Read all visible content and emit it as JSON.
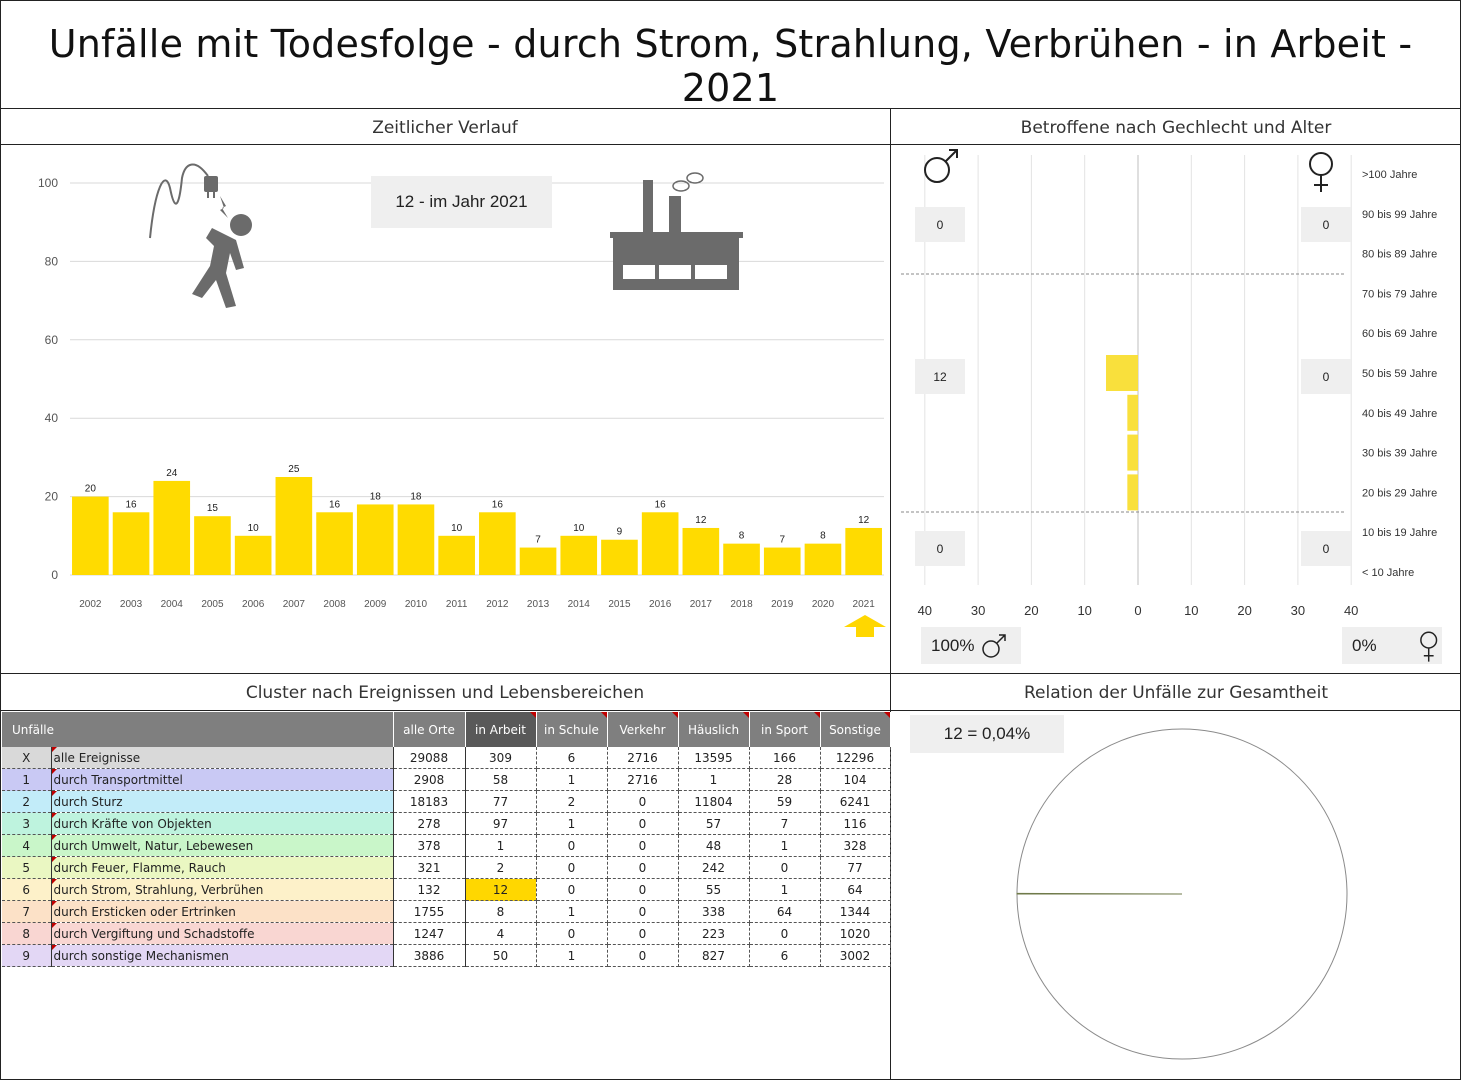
{
  "title": "Unfälle mit Todesfolge - durch Strom, Strahlung, Verbrühen - in Arbeit - 2021",
  "sections": {
    "timeline": "Zeitlicher Verlauf",
    "gender": "Betroffene nach Gechlecht und Alter",
    "cluster": "Cluster nach Ereignissen und Lebensbereichen",
    "relation": "Relation der Unfälle zur Gesamtheit"
  },
  "colors": {
    "bar": "#FFDB00",
    "pyramid_bar": "#F9E03C",
    "arrow": "#FFD700",
    "highlight": "#FFD700",
    "header": "#7F7F7F"
  },
  "timeline_callout": "12 - im Jahr 2021",
  "gender_callouts": {
    "male_top": "0",
    "female_top": "0",
    "male_mid": "12",
    "female_mid": "0",
    "male_bot": "0",
    "female_bot": "0",
    "male_pct": "100%",
    "female_pct": "0%"
  },
  "relation_callout": "12 =  0,04%",
  "icons": [
    "electric-shock-icon",
    "factory-icon",
    "male-symbol-icon",
    "female-symbol-icon",
    "up-arrow-icon"
  ],
  "chart_data": [
    {
      "type": "bar",
      "title": "Zeitlicher Verlauf",
      "categories": [
        "2002",
        "2003",
        "2004",
        "2005",
        "2006",
        "2007",
        "2008",
        "2009",
        "2010",
        "2011",
        "2012",
        "2013",
        "2014",
        "2015",
        "2016",
        "2017",
        "2018",
        "2019",
        "2020",
        "2021"
      ],
      "values": [
        20,
        16,
        24,
        15,
        10,
        25,
        16,
        18,
        18,
        10,
        16,
        7,
        10,
        9,
        16,
        12,
        8,
        7,
        8,
        12
      ],
      "ylim": [
        0,
        100
      ],
      "yticks": [
        0,
        20,
        40,
        60,
        80,
        100
      ],
      "grid": true,
      "highlight_category": "2021"
    },
    {
      "type": "bar",
      "title": "Betroffene nach Gechlecht und Alter",
      "orientation": "horizontal",
      "categories": [
        ">100 Jahre",
        "90 bis 99 Jahre",
        "80 bis 89 Jahre",
        "70 bis 79 Jahre",
        "60 bis 69 Jahre",
        "50 bis 59 Jahre",
        "40 bis 49 Jahre",
        "30 bis 39 Jahre",
        "20 bis 29 Jahre",
        "10 bis 19 Jahre",
        "< 10 Jahre"
      ],
      "series": [
        {
          "name": "♂",
          "values": [
            0,
            0,
            0,
            0,
            0,
            6,
            2,
            2,
            2,
            0,
            0
          ]
        },
        {
          "name": "♀",
          "values": [
            0,
            0,
            0,
            0,
            0,
            0,
            0,
            0,
            0,
            0,
            0
          ]
        }
      ],
      "xticks": [
        "40",
        "30",
        "20",
        "10",
        "0",
        "10",
        "20",
        "30",
        "40"
      ],
      "xlim": [
        -40,
        40
      ]
    },
    {
      "type": "pie",
      "title": "Relation der Unfälle zur Gesamtheit",
      "values": [
        12,
        29076
      ],
      "percent": "0,04%"
    },
    {
      "type": "table",
      "title": "Cluster nach Ereignissen und Lebensbereichen",
      "columns": [
        "Unfälle",
        "",
        "alle Orte",
        "in Arbeit",
        "in Schule",
        "Verkehr",
        "Häuslich",
        "in Sport",
        "Sonstige"
      ],
      "rows": [
        {
          "id": "X",
          "label": "alle Ereignisse",
          "color": "#D9D9D9",
          "values": [
            "29088",
            "309",
            "6",
            "2716",
            "13595",
            "166",
            "12296"
          ]
        },
        {
          "id": "1",
          "label": "durch Transportmittel",
          "color": "#C9C9F4",
          "values": [
            "2908",
            "58",
            "1",
            "2716",
            "1",
            "28",
            "104"
          ]
        },
        {
          "id": "2",
          "label": "durch Sturz",
          "color": "#C2ECF9",
          "values": [
            "18183",
            "77",
            "2",
            "0",
            "11804",
            "59",
            "6241"
          ]
        },
        {
          "id": "3",
          "label": "durch Kräfte von Objekten",
          "color": "#BEF3DE",
          "values": [
            "278",
            "97",
            "1",
            "0",
            "57",
            "7",
            "116"
          ]
        },
        {
          "id": "4",
          "label": "durch Umwelt, Natur, Lebewesen",
          "color": "#C9F6C9",
          "values": [
            "378",
            "1",
            "0",
            "0",
            "48",
            "1",
            "328"
          ]
        },
        {
          "id": "5",
          "label": "durch Feuer, Flamme, Rauch",
          "color": "#EAF7C2",
          "values": [
            "321",
            "2",
            "0",
            "0",
            "242",
            "0",
            "77"
          ]
        },
        {
          "id": "6",
          "label": "durch Strom, Strahlung, Verbrühen",
          "color": "#FDF1C9",
          "values": [
            "132",
            "12",
            "0",
            "0",
            "55",
            "1",
            "64"
          ]
        },
        {
          "id": "7",
          "label": "durch Ersticken oder Ertrinken",
          "color": "#FCE1C7",
          "values": [
            "1755",
            "8",
            "1",
            "0",
            "338",
            "64",
            "1344"
          ]
        },
        {
          "id": "8",
          "label": "durch Vergiftung und Schadstoffe",
          "color": "#F9D6D2",
          "values": [
            "1247",
            "4",
            "0",
            "0",
            "223",
            "0",
            "1020"
          ]
        },
        {
          "id": "9",
          "label": "durch sonstige Mechanismen",
          "color": "#E3D7F5",
          "values": [
            "3886",
            "50",
            "1",
            "0",
            "827",
            "6",
            "3002"
          ]
        }
      ],
      "highlight": {
        "row": "6",
        "column": "in Arbeit"
      }
    }
  ]
}
